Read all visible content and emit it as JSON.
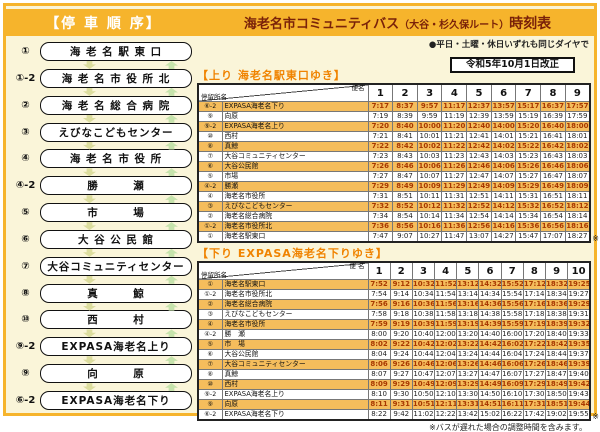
{
  "header": {
    "stop_order_title": "【停 車 順 序】",
    "main_title": "海老名市コミュニティバス",
    "route_subtitle": "（大谷・杉久保ルート）",
    "title_suffix": "時刻表"
  },
  "notes": {
    "same_schedule": "●平日・土曜・休日いずれも同じダイヤで",
    "revision": "令和5年10月1日改正",
    "table_asterisk": "※",
    "footnote": "※バスが遅れた場合の調整時間を含みます。"
  },
  "stops_panel": {
    "items": [
      {
        "num": "①",
        "name": "海 老 名 駅 東 口"
      },
      {
        "num": "①-2",
        "name": "海 老 名 市 役 所 北"
      },
      {
        "num": "②",
        "name": "海 老 名 総 合 病 院"
      },
      {
        "num": "③",
        "name": "えびなこどもセンター"
      },
      {
        "num": "④",
        "name": "海 老 名 市 役 所"
      },
      {
        "num": "④-2",
        "name": "勝　　　瀬"
      },
      {
        "num": "⑤",
        "name": "市　　　場"
      },
      {
        "num": "⑥",
        "name": "大 谷 公 民 館"
      },
      {
        "num": "⑦",
        "name": "大谷コミュニティセンター"
      },
      {
        "num": "⑧",
        "name": "真　　　鯨"
      },
      {
        "num": "⑩",
        "name": "西　　　村"
      },
      {
        "num": "⑨-2",
        "name": "EXPASA海老名上り"
      },
      {
        "num": "⑨",
        "name": "向　　　原"
      },
      {
        "num": "⑥-2",
        "name": "EXPASA海老名下り"
      }
    ]
  },
  "up_table": {
    "title": "【上り 海老名駅東口ゆき】",
    "corner_top": "便名",
    "corner_bottom": "停留所名",
    "columns": [
      "1",
      "2",
      "3",
      "4",
      "5",
      "6",
      "7",
      "8",
      "9"
    ],
    "rows": [
      {
        "num": "⑥-2",
        "name": "EXPASA海老名下り",
        "hl": true,
        "times": [
          "7:17",
          "8:37",
          "9:57",
          "11:17",
          "12:37",
          "13:57",
          "15:17",
          "16:37",
          "17:57"
        ]
      },
      {
        "num": "⑨",
        "name": "向原",
        "hl": false,
        "times": [
          "7:19",
          "8:39",
          "9:59",
          "11:19",
          "12:39",
          "13:59",
          "15:19",
          "16:39",
          "17:59"
        ]
      },
      {
        "num": "⑨-2",
        "name": "EXPASA海老名上り",
        "hl": true,
        "times": [
          "7:20",
          "8:40",
          "10:00",
          "11:20",
          "12:40",
          "14:00",
          "15:20",
          "16:40",
          "18:00"
        ]
      },
      {
        "num": "⑩",
        "name": "西村",
        "hl": false,
        "times": [
          "7:21",
          "8:41",
          "10:01",
          "11:21",
          "12:41",
          "14:01",
          "15:21",
          "16:41",
          "18:01"
        ]
      },
      {
        "num": "⑧",
        "name": "真鯨",
        "hl": true,
        "times": [
          "7:22",
          "8:42",
          "10:02",
          "11:22",
          "12:42",
          "14:02",
          "15:22",
          "16:42",
          "18:02"
        ]
      },
      {
        "num": "⑦",
        "name": "大谷コミュニティセンター",
        "hl": false,
        "times": [
          "7:23",
          "8:43",
          "10:03",
          "11:23",
          "12:43",
          "14:03",
          "15:23",
          "16:43",
          "18:03"
        ]
      },
      {
        "num": "⑥",
        "name": "大谷公民館",
        "hl": true,
        "times": [
          "7:26",
          "8:46",
          "10:06",
          "11:26",
          "12:46",
          "14:06",
          "15:26",
          "16:46",
          "18:06"
        ]
      },
      {
        "num": "⑤",
        "name": "市場",
        "hl": false,
        "times": [
          "7:27",
          "8:47",
          "10:07",
          "11:27",
          "12:47",
          "14:07",
          "15:27",
          "16:47",
          "18:07"
        ]
      },
      {
        "num": "④-2",
        "name": "勝瀬",
        "hl": true,
        "times": [
          "7:29",
          "8:49",
          "10:09",
          "11:29",
          "12:49",
          "14:09",
          "15:29",
          "16:49",
          "18:09"
        ]
      },
      {
        "num": "④",
        "name": "海老名市役所",
        "hl": false,
        "times": [
          "7:31",
          "8:51",
          "10:11",
          "11:31",
          "12:51",
          "14:11",
          "15:31",
          "16:51",
          "18:11"
        ]
      },
      {
        "num": "③",
        "name": "えびなこどもセンター",
        "hl": true,
        "times": [
          "7:32",
          "8:52",
          "10:12",
          "11:32",
          "12:52",
          "14:12",
          "15:32",
          "16:52",
          "18:12"
        ]
      },
      {
        "num": "②",
        "name": "海老名総合病院",
        "hl": false,
        "times": [
          "7:34",
          "8:54",
          "10:14",
          "11:34",
          "12:54",
          "14:14",
          "15:34",
          "16:54",
          "18:14"
        ]
      },
      {
        "num": "①-2",
        "name": "海老名市役所北",
        "hl": true,
        "times": [
          "7:36",
          "8:56",
          "10:16",
          "11:36",
          "12:56",
          "14:16",
          "15:36",
          "16:56",
          "18:16"
        ]
      },
      {
        "num": "①",
        "name": "海老名駅東口",
        "hl": false,
        "times": [
          "7:47",
          "9:07",
          "10:27",
          "11:47",
          "13:07",
          "14:27",
          "15:47",
          "17:07",
          "18:27"
        ]
      }
    ]
  },
  "down_table": {
    "title": "【下り EXPASA海老名下りゆき】",
    "corner_top": "便 名",
    "corner_bottom": "停留所名",
    "columns": [
      "1",
      "2",
      "3",
      "4",
      "5",
      "6",
      "7",
      "8",
      "9",
      "10"
    ],
    "rows": [
      {
        "num": "①",
        "name": "海老名駅東口",
        "hl": true,
        "times": [
          "7:52",
          "9:12",
          "10:32",
          "11:52",
          "13:12",
          "14:32",
          "15:52",
          "17:12",
          "18:32",
          "19:25"
        ]
      },
      {
        "num": "①-2",
        "name": "海老名市役所北",
        "hl": false,
        "times": [
          "7:54",
          "9:14",
          "10:34",
          "11:54",
          "13:14",
          "14:34",
          "15:54",
          "17:14",
          "18:34",
          "19:27"
        ]
      },
      {
        "num": "②",
        "name": "海老名総合病院",
        "hl": true,
        "times": [
          "7:56",
          "9:16",
          "10:36",
          "11:56",
          "13:16",
          "14:36",
          "15:56",
          "17:16",
          "18:36",
          "19:29"
        ]
      },
      {
        "num": "③",
        "name": "えびなこどもセンター",
        "hl": false,
        "times": [
          "7:58",
          "9:18",
          "10:38",
          "11:58",
          "13:18",
          "14:38",
          "15:58",
          "17:18",
          "18:38",
          "19:31"
        ]
      },
      {
        "num": "④",
        "name": "海老名市役所",
        "hl": true,
        "times": [
          "7:59",
          "9:19",
          "10:39",
          "11:59",
          "13:19",
          "14:39",
          "15:59",
          "17:19",
          "18:39",
          "19:32"
        ]
      },
      {
        "num": "④-2",
        "name": "勝　瀬",
        "hl": false,
        "times": [
          "8:00",
          "9:20",
          "10:40",
          "12:00",
          "13:20",
          "14:40",
          "16:00",
          "17:20",
          "18:40",
          "19:33"
        ]
      },
      {
        "num": "⑤",
        "name": "市　場",
        "hl": true,
        "times": [
          "8:02",
          "9:22",
          "10:42",
          "12:02",
          "13:22",
          "14:42",
          "16:02",
          "17:22",
          "18:42",
          "19:35"
        ]
      },
      {
        "num": "⑥",
        "name": "大谷公民館",
        "hl": false,
        "times": [
          "8:04",
          "9:24",
          "10:44",
          "12:04",
          "13:24",
          "14:44",
          "16:04",
          "17:24",
          "18:44",
          "19:37"
        ]
      },
      {
        "num": "⑦",
        "name": "大谷コミュニティセンター",
        "hl": true,
        "times": [
          "8:06",
          "9:26",
          "10:46",
          "12:06",
          "13:26",
          "14:46",
          "16:06",
          "17:26",
          "18:46",
          "19:39"
        ]
      },
      {
        "num": "⑧",
        "name": "真鯨",
        "hl": false,
        "times": [
          "8:07",
          "9:27",
          "10:47",
          "12:07",
          "13:27",
          "14:47",
          "16:07",
          "17:27",
          "18:47",
          "19:40"
        ]
      },
      {
        "num": "⑩",
        "name": "西村",
        "hl": true,
        "times": [
          "8:09",
          "9:29",
          "10:49",
          "12:09",
          "13:29",
          "14:49",
          "16:09",
          "17:29",
          "18:49",
          "19:42"
        ]
      },
      {
        "num": "⑨-2",
        "name": "EXPASA海老名上り",
        "hl": false,
        "times": [
          "8:10",
          "9:30",
          "10:50",
          "12:10",
          "13:30",
          "14:50",
          "16:10",
          "17:30",
          "18:50",
          "19:43"
        ]
      },
      {
        "num": "⑨",
        "name": "向原",
        "hl": true,
        "times": [
          "8:11",
          "9:31",
          "10:51",
          "12:11",
          "13:31",
          "14:51",
          "16:11",
          "17:31",
          "18:51",
          "19:44"
        ]
      },
      {
        "num": "⑥-2",
        "name": "EXPASA海老名下り",
        "hl": false,
        "times": [
          "8:22",
          "9:42",
          "11:02",
          "12:22",
          "13:42",
          "15:02",
          "16:22",
          "17:42",
          "19:02",
          "19:55"
        ]
      }
    ]
  },
  "colors": {
    "accent_orange": "#F6B42C",
    "row_highlight": "#F5BD5C",
    "title_maroon": "#7A2209",
    "table_title_orange": "#F08300",
    "time_red": "#A83800"
  }
}
